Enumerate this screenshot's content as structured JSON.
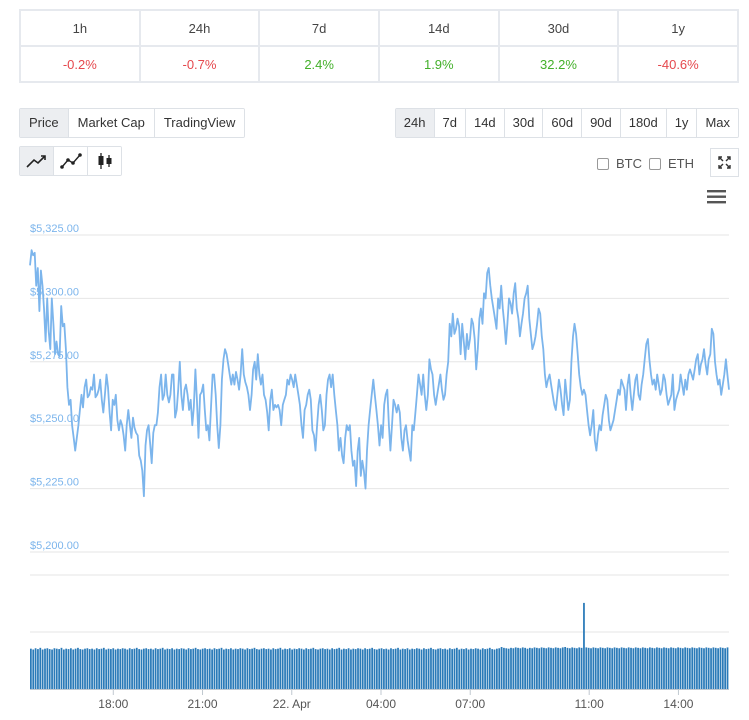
{
  "performance": {
    "periods": [
      {
        "label": "1h",
        "value": "-0.2%",
        "trend": "neg"
      },
      {
        "label": "24h",
        "value": "-0.7%",
        "trend": "neg"
      },
      {
        "label": "7d",
        "value": "2.4%",
        "trend": "pos"
      },
      {
        "label": "14d",
        "value": "1.9%",
        "trend": "pos"
      },
      {
        "label": "30d",
        "value": "32.2%",
        "trend": "pos"
      },
      {
        "label": "1y",
        "value": "-40.6%",
        "trend": "neg"
      }
    ]
  },
  "chart_types": {
    "items": [
      "Price",
      "Market Cap",
      "TradingView"
    ],
    "active": "Price"
  },
  "ranges": {
    "items": [
      "24h",
      "7d",
      "14d",
      "30d",
      "60d",
      "90d",
      "180d",
      "1y",
      "Max"
    ],
    "active": "24h"
  },
  "tools": [
    {
      "icon": "line-chart-icon",
      "active": true
    },
    {
      "icon": "point-line-chart-icon",
      "active": false
    },
    {
      "icon": "candlestick-icon",
      "active": false
    }
  ],
  "compare": {
    "btc": "BTC",
    "eth": "ETH"
  },
  "colors": {
    "line": "#7cb5ec",
    "volume": "#2a7ab8",
    "axis_label": "#7cb5ec",
    "grid": "#e6e6e6",
    "negative": "#e5484d",
    "positive": "#43b02a"
  },
  "chart_data": {
    "type": "line",
    "y_ticks": [
      "$5,325.00",
      "$5,300.00",
      "$5,275.00",
      "$5,250.00",
      "$5,225.00",
      "$5,200.00"
    ],
    "ylim": [
      5200,
      5325
    ],
    "x_ticks": [
      "18:00",
      "21:00",
      "22. Apr",
      "04:00",
      "07:00",
      "11:00",
      "14:00"
    ],
    "x_tick_hours": [
      2.8,
      5.8,
      8.8,
      11.8,
      14.8,
      18.8,
      21.8
    ],
    "x_range_hours": [
      0,
      23.5
    ],
    "series": [
      {
        "values": [
          5313,
          5319,
          5317,
          5318,
          5305,
          5312,
          5295,
          5311,
          5305,
          5296,
          5283,
          5300,
          5287,
          5280,
          5300,
          5290,
          5278,
          5283,
          5278,
          5277,
          5297,
          5289,
          5290,
          5280,
          5265,
          5258,
          5260,
          5250,
          5245,
          5240,
          5245,
          5250,
          5256,
          5262,
          5257,
          5265,
          5268,
          5261,
          5262,
          5265,
          5264,
          5270,
          5261,
          5262,
          5264,
          5268,
          5260,
          5255,
          5262,
          5270,
          5265,
          5255,
          5248,
          5260,
          5258,
          5262,
          5252,
          5248,
          5252,
          5250,
          5246,
          5240,
          5250,
          5256,
          5250,
          5245,
          5253,
          5249,
          5247,
          5246,
          5238,
          5236,
          5232,
          5222,
          5242,
          5248,
          5250,
          5243,
          5235,
          5247,
          5250,
          5250,
          5255,
          5265,
          5270,
          5260,
          5262,
          5270,
          5262,
          5259,
          5262,
          5270,
          5270,
          5253,
          5256,
          5264,
          5275,
          5262,
          5256,
          5264,
          5266,
          5262,
          5256,
          5260,
          5250,
          5257,
          5272,
          5260,
          5245,
          5262,
          5263,
          5266,
          5256,
          5248,
          5250,
          5244,
          5257,
          5270,
          5270,
          5262,
          5250,
          5241,
          5250,
          5268,
          5276,
          5280,
          5278,
          5274,
          5270,
          5266,
          5270,
          5266,
          5271,
          5268,
          5264,
          5270,
          5280,
          5270,
          5267,
          5265,
          5262,
          5256,
          5262,
          5272,
          5275,
          5268,
          5278,
          5270,
          5266,
          5270,
          5262,
          5260,
          5255,
          5248,
          5260,
          5264,
          5256,
          5258,
          5257,
          5258,
          5256,
          5250,
          5258,
          5260,
          5262,
          5268,
          5266,
          5270,
          5268,
          5265,
          5270,
          5266,
          5262,
          5258,
          5250,
          5245,
          5256,
          5258,
          5262,
          5264,
          5260,
          5248,
          5246,
          5240,
          5250,
          5258,
          5262,
          5256,
          5248,
          5250,
          5262,
          5268,
          5270,
          5265,
          5270,
          5262,
          5256,
          5250,
          5240,
          5245,
          5238,
          5235,
          5245,
          5250,
          5248,
          5250,
          5240,
          5234,
          5236,
          5226,
          5240,
          5245,
          5230,
          5236,
          5232,
          5225,
          5240,
          5250,
          5256,
          5262,
          5268,
          5262,
          5256,
          5250,
          5242,
          5250,
          5245,
          5258,
          5262,
          5264,
          5250,
          5240,
          5250,
          5260,
          5258,
          5255,
          5258,
          5255,
          5245,
          5240,
          5248,
          5250,
          5244,
          5240,
          5236,
          5250,
          5248,
          5255,
          5262,
          5270,
          5266,
          5262,
          5270,
          5262,
          5256,
          5262,
          5276,
          5272,
          5270,
          5262,
          5258,
          5262,
          5266,
          5270,
          5264,
          5260,
          5262,
          5270,
          5275,
          5290,
          5285,
          5294,
          5286,
          5288,
          5292,
          5289,
          5278,
          5290,
          5283,
          5276,
          5286,
          5280,
          5284,
          5292,
          5290,
          5284,
          5272,
          5280,
          5292,
          5296,
          5290,
          5302,
          5300,
          5310,
          5312,
          5305,
          5300,
          5296,
          5292,
          5288,
          5300,
          5296,
          5305,
          5296,
          5290,
          5282,
          5290,
          5300,
          5298,
          5294,
          5302,
          5306,
          5296,
          5292,
          5285,
          5290,
          5294,
          5300,
          5302,
          5305,
          5292,
          5286,
          5280,
          5282,
          5285,
          5290,
          5296,
          5294,
          5285,
          5280,
          5270,
          5265,
          5268,
          5270,
          5266,
          5262,
          5258,
          5256,
          5262,
          5268,
          5264,
          5258,
          5254,
          5268,
          5262,
          5256,
          5260,
          5275,
          5285,
          5290,
          5286,
          5278,
          5270,
          5265,
          5262,
          5264,
          5262,
          5256,
          5250,
          5246,
          5250,
          5256,
          5244,
          5240,
          5246,
          5250,
          5248,
          5254,
          5258,
          5262,
          5260,
          5252,
          5248,
          5250,
          5252,
          5256,
          5260,
          5264,
          5262,
          5268,
          5266,
          5264,
          5256,
          5266,
          5270,
          5262,
          5256,
          5262,
          5268,
          5270,
          5262,
          5260,
          5266,
          5270,
          5276,
          5282,
          5284,
          5276,
          5270,
          5266,
          5268,
          5264,
          5270,
          5266,
          5262,
          5264,
          5270,
          5268,
          5262,
          5258,
          5260,
          5262,
          5270,
          5256,
          5260,
          5262,
          5264,
          5270,
          5266,
          5262,
          5268,
          5264,
          5270,
          5272,
          5270,
          5268,
          5272,
          5276,
          5278,
          5270,
          5274,
          5276,
          5280,
          5274,
          5270,
          5276,
          5278,
          5288,
          5286,
          5275,
          5270,
          5266,
          5268,
          5262,
          5266,
          5270,
          5276,
          5270,
          5264
        ]
      }
    ],
    "volume": {
      "values": [
        0.96,
        0.94,
        0.97,
        0.95,
        0.98,
        0.94,
        0.96,
        0.97,
        0.95,
        0.94,
        0.97,
        0.96,
        0.95,
        0.98,
        0.94,
        0.96,
        0.95,
        0.97,
        0.94,
        0.96,
        0.98,
        0.95,
        0.94,
        0.96,
        0.97,
        0.95,
        0.96,
        0.94,
        0.97,
        0.95,
        0.96,
        0.98,
        0.94,
        0.96,
        0.95,
        0.97,
        0.94,
        0.96,
        0.95,
        0.97,
        0.96,
        0.94,
        0.97,
        0.95,
        0.96,
        0.98,
        0.95,
        0.94,
        0.96,
        0.97,
        0.95,
        0.96,
        0.94,
        0.97,
        0.95,
        0.96,
        0.98,
        0.94,
        0.96,
        0.95,
        0.97,
        0.94,
        0.96,
        0.95,
        0.97,
        0.96,
        0.94,
        0.97,
        0.95,
        0.96,
        0.98,
        0.95,
        0.94,
        0.96,
        0.97,
        0.95,
        0.96,
        0.94,
        0.97,
        0.95,
        0.96,
        0.98,
        0.94,
        0.96,
        0.95,
        0.97,
        0.94,
        0.96,
        0.95,
        0.97,
        0.96,
        0.94,
        0.97,
        0.95,
        0.96,
        0.98,
        0.95,
        0.94,
        0.96,
        0.97,
        0.95,
        0.96,
        0.94,
        0.97,
        0.95,
        0.96,
        0.98,
        0.94,
        0.96,
        0.95,
        0.97,
        0.94,
        0.96,
        0.95,
        0.97,
        0.96,
        0.94,
        0.97,
        0.95,
        0.96,
        0.98,
        0.95,
        0.94,
        0.96,
        0.97,
        0.95,
        0.96,
        0.94,
        0.97,
        0.95,
        0.96,
        0.98,
        0.94,
        0.96,
        0.95,
        0.97,
        0.94,
        0.96,
        0.95,
        0.97,
        0.96,
        0.94,
        0.97,
        0.95,
        0.96,
        0.98,
        0.95,
        0.94,
        0.96,
        0.97,
        0.95,
        0.96,
        0.94,
        0.97,
        0.95,
        0.96,
        0.98,
        0.94,
        0.96,
        0.95,
        0.97,
        0.94,
        0.96,
        0.95,
        0.97,
        0.96,
        0.94,
        0.97,
        0.95,
        0.96,
        0.98,
        0.95,
        0.94,
        0.96,
        0.97,
        0.95,
        0.96,
        0.94,
        0.97,
        0.95,
        0.96,
        0.98,
        0.94,
        0.96,
        0.95,
        0.97,
        0.94,
        0.96,
        0.95,
        0.97,
        0.96,
        0.94,
        0.97,
        0.95,
        0.96,
        0.98,
        0.95,
        0.94,
        0.96,
        0.97,
        1.0,
        0.98,
        0.97,
        0.96,
        0.98,
        0.97,
        0.99,
        0.98,
        0.97,
        0.99,
        0.98,
        0.96,
        0.98,
        0.97,
        0.99,
        0.98,
        0.97,
        0.99,
        0.98,
        0.97,
        0.99,
        0.98,
        0.97,
        0.99,
        0.98,
        0.97,
        0.99,
        1.0,
        0.98,
        0.97,
        0.99,
        0.98,
        0.97,
        0.99,
        0.98,
        2.05,
        0.99,
        0.98,
        0.97,
        0.99,
        0.98,
        0.97,
        0.99,
        0.98,
        0.97,
        0.99,
        0.98,
        0.97,
        0.99,
        0.98,
        0.97,
        0.99,
        0.98,
        0.97,
        0.99,
        0.98,
        0.97,
        0.99,
        0.98,
        0.97,
        0.99,
        0.98,
        0.97,
        0.99,
        0.98,
        0.97,
        0.99,
        0.98,
        0.97,
        0.99,
        0.98,
        0.97,
        0.99,
        0.98,
        0.97,
        0.99,
        0.98,
        0.97,
        0.99,
        0.98,
        0.97,
        0.99,
        0.98,
        0.97,
        0.99,
        0.98,
        0.97,
        0.99,
        0.98,
        0.97,
        0.99,
        0.98,
        0.97,
        0.99,
        0.98,
        0.97,
        0.99
      ]
    }
  }
}
